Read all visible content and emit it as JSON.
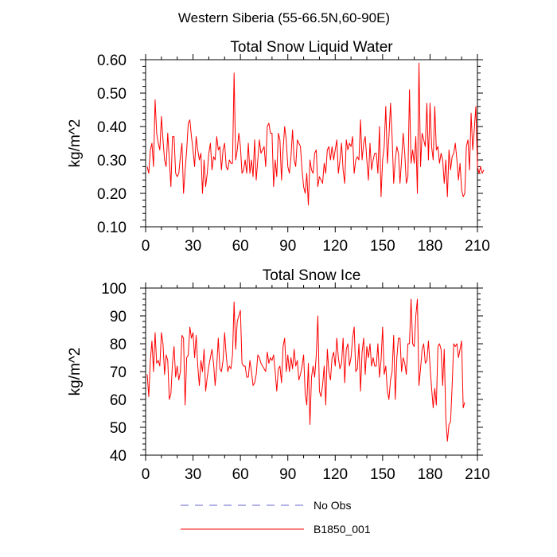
{
  "figure": {
    "suptitle": "Western Siberia (55-66.5N,60-90E)",
    "legend": [
      {
        "label": "No Obs",
        "color": "#6666cc",
        "style": "dashed"
      },
      {
        "label": "B1850_001",
        "color": "#ff0000",
        "style": "solid"
      }
    ]
  },
  "chart_data": [
    {
      "type": "line",
      "title": "Total Snow Liquid Water",
      "xlabel": "",
      "ylabel": "kg/m^2",
      "xlim": [
        0,
        210
      ],
      "ylim": [
        0.1,
        0.6
      ],
      "xticks": [
        0,
        30,
        60,
        90,
        120,
        150,
        180,
        210
      ],
      "xtick_labels": [
        "0",
        "30",
        "60",
        "90",
        "120",
        "150",
        "180",
        "210"
      ],
      "yticks": [
        0.1,
        0.2,
        0.3,
        0.4,
        0.5,
        0.6
      ],
      "ytick_labels": [
        "0.10",
        "0.20",
        "0.30",
        "0.40",
        "0.50",
        "0.60"
      ],
      "grid": false,
      "series": [
        {
          "name": "B1850_001",
          "color": "#ff0000",
          "x_start": 1,
          "x_step": 1,
          "values": [
            0.28,
            0.26,
            0.33,
            0.35,
            0.28,
            0.48,
            0.38,
            0.35,
            0.33,
            0.43,
            0.36,
            0.3,
            0.28,
            0.38,
            0.3,
            0.22,
            0.37,
            0.37,
            0.26,
            0.25,
            0.26,
            0.31,
            0.35,
            0.2,
            0.27,
            0.33,
            0.41,
            0.42,
            0.37,
            0.33,
            0.28,
            0.37,
            0.33,
            0.3,
            0.32,
            0.2,
            0.3,
            0.22,
            0.26,
            0.32,
            0.35,
            0.27,
            0.31,
            0.3,
            0.37,
            0.33,
            0.34,
            0.27,
            0.33,
            0.35,
            0.28,
            0.27,
            0.3,
            0.29,
            0.29,
            0.56,
            0.3,
            0.33,
            0.38,
            0.34,
            0.26,
            0.27,
            0.3,
            0.26,
            0.35,
            0.26,
            0.3,
            0.25,
            0.36,
            0.24,
            0.3,
            0.36,
            0.32,
            0.33,
            0.34,
            0.28,
            0.4,
            0.41,
            0.38,
            0.38,
            0.22,
            0.3,
            0.25,
            0.38,
            0.36,
            0.24,
            0.33,
            0.4,
            0.36,
            0.28,
            0.26,
            0.31,
            0.39,
            0.3,
            0.28,
            0.36,
            0.35,
            0.34,
            0.27,
            0.22,
            0.2,
            0.26,
            0.165,
            0.3,
            0.27,
            0.26,
            0.32,
            0.33,
            0.22,
            0.25,
            0.24,
            0.23,
            0.29,
            0.26,
            0.33,
            0.34,
            0.3,
            0.34,
            0.3,
            0.33,
            0.36,
            0.26,
            0.3,
            0.35,
            0.27,
            0.23,
            0.36,
            0.33,
            0.35,
            0.34,
            0.37,
            0.26,
            0.3,
            0.31,
            0.3,
            0.42,
            0.3,
            0.35,
            0.37,
            0.3,
            0.24,
            0.35,
            0.27,
            0.3,
            0.32,
            0.32,
            0.26,
            0.4,
            0.19,
            0.3,
            0.34,
            0.46,
            0.29,
            0.37,
            0.47,
            0.37,
            0.23,
            0.3,
            0.34,
            0.32,
            0.23,
            0.3,
            0.38,
            0.32,
            0.23,
            0.25,
            0.51,
            0.29,
            0.33,
            0.29,
            0.37,
            0.2,
            0.59,
            0.28,
            0.38,
            0.36,
            0.34,
            0.47,
            0.3,
            0.47,
            0.34,
            0.3,
            0.46,
            0.33,
            0.34,
            0.29,
            0.32,
            0.3,
            0.23,
            0.3,
            0.19,
            0.33,
            0.27,
            0.31,
            0.32,
            0.35,
            0.3,
            0.24,
            0.29,
            0.21,
            0.19,
            0.2,
            0.34,
            0.36,
            0.27,
            0.44,
            0.33,
            0.39,
            0.46,
            0.28,
            0.26,
            0.28,
            0.26,
            0.27
          ]
        }
      ]
    },
    {
      "type": "line",
      "title": "Total Snow Ice",
      "xlabel": "",
      "ylabel": "kg/m^2",
      "xlim": [
        0,
        210
      ],
      "ylim": [
        40,
        100
      ],
      "xticks": [
        0,
        30,
        60,
        90,
        120,
        150,
        180,
        210
      ],
      "xtick_labels": [
        "0",
        "30",
        "60",
        "90",
        "120",
        "150",
        "180",
        "210"
      ],
      "yticks": [
        40,
        50,
        60,
        70,
        80,
        90,
        100
      ],
      "ytick_labels": [
        "40",
        "50",
        "60",
        "70",
        "80",
        "90",
        "100"
      ],
      "grid": false,
      "series": [
        {
          "name": "B1850_001",
          "color": "#ff0000",
          "x_start": 1,
          "x_step": 1,
          "values": [
            69,
            61,
            74,
            81,
            70,
            84,
            73,
            74,
            72,
            84,
            80,
            69,
            76,
            74,
            60,
            62,
            73,
            79,
            68,
            72,
            67,
            70,
            83,
            82,
            58,
            75,
            76,
            86,
            82,
            84,
            75,
            83,
            72,
            65,
            74,
            70,
            78,
            63,
            68,
            72,
            75,
            78,
            73,
            65,
            72,
            82,
            71,
            70,
            74,
            84,
            76,
            70,
            72,
            71,
            76,
            95,
            78,
            88,
            90,
            92,
            73,
            72,
            72,
            68,
            68,
            74,
            70,
            65,
            66,
            69,
            76,
            75,
            73,
            72,
            71,
            70,
            77,
            73,
            75,
            74,
            76,
            70,
            63,
            71,
            72,
            66,
            79,
            82,
            70,
            76,
            70,
            75,
            71,
            78,
            72,
            74,
            67,
            69,
            72,
            76,
            62,
            58,
            73,
            51,
            68,
            72,
            68,
            76,
            90,
            63,
            61,
            65,
            72,
            58,
            78,
            70,
            67,
            75,
            77,
            72,
            82,
            75,
            71,
            73,
            82,
            66,
            78,
            80,
            72,
            75,
            82,
            86,
            70,
            71,
            80,
            63,
            77,
            82,
            69,
            79,
            75,
            80,
            72,
            75,
            72,
            72,
            80,
            68,
            74,
            86,
            69,
            72,
            63,
            60,
            67,
            70,
            83,
            60,
            75,
            82,
            82,
            70,
            75,
            73,
            69,
            80,
            80,
            96,
            80,
            79,
            90,
            96,
            65,
            71,
            78,
            80,
            73,
            74,
            81,
            72,
            64,
            57,
            64,
            58,
            79,
            80,
            78,
            65,
            78,
            53,
            45,
            51,
            52,
            65,
            80,
            79,
            80,
            75,
            78,
            81,
            57,
            59
          ]
        }
      ]
    }
  ]
}
